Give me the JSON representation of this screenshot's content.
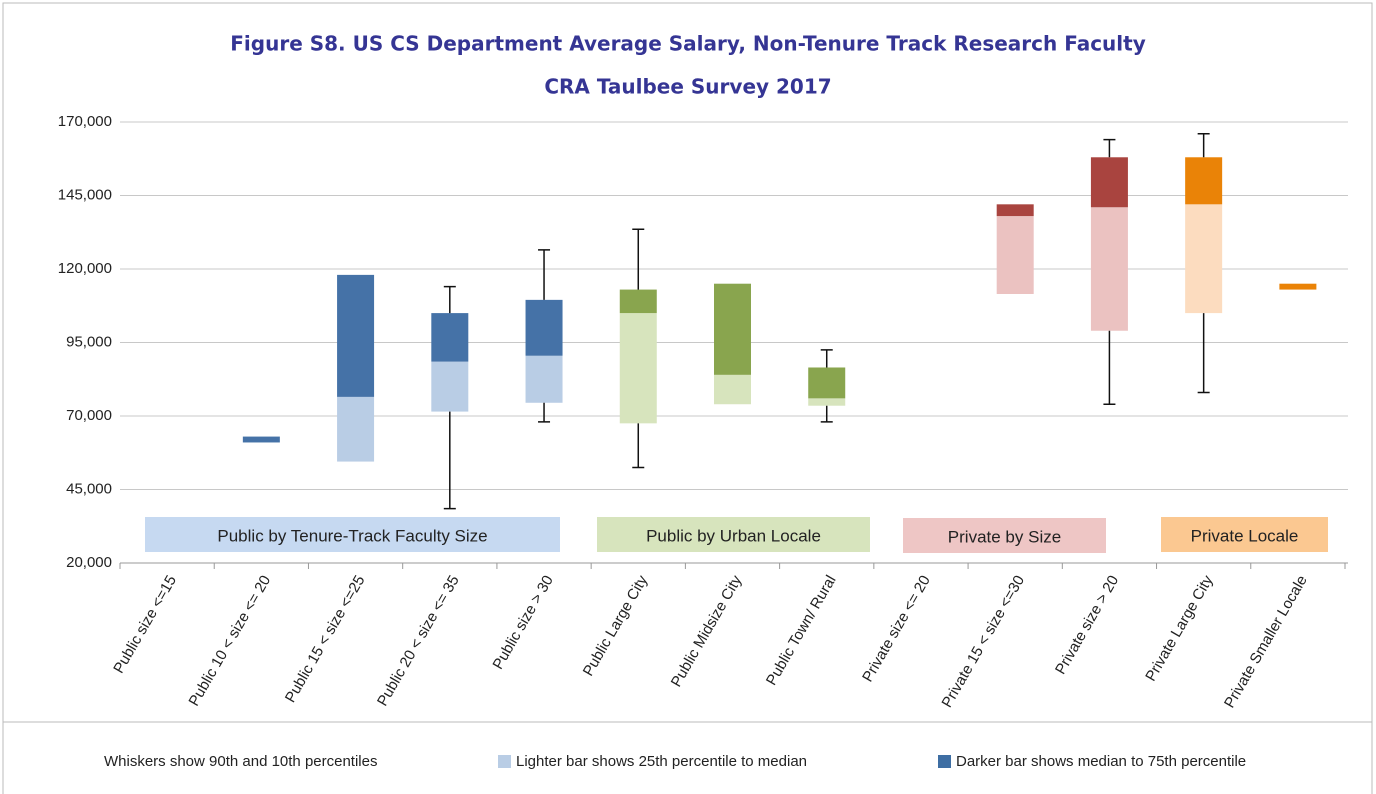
{
  "chart_data": {
    "type": "box",
    "title": "Figure S8. US CS Department Average Salary, Non-Tenure Track Research Faculty",
    "subtitle": "CRA Taulbee Survey 2017",
    "categories": [
      "Public size <=15",
      "Public 10 < size <= 20",
      "Public 15 < size <=25",
      "Public 20 < size <= 35",
      "Public size > 30",
      "Public Large City",
      "Public Midsize City",
      "Public Town/ Rural",
      "Private size <= 20",
      "Private 15 < size <=30",
      "Private size > 20",
      "Private Large City",
      "Private Smaller Locale"
    ],
    "p10": [
      null,
      null,
      null,
      38500,
      68000,
      52500,
      null,
      68000,
      null,
      null,
      74000,
      78000,
      null
    ],
    "p25": [
      null,
      61000,
      54500,
      71500,
      74500,
      67500,
      74000,
      73500,
      null,
      111500,
      99000,
      105000,
      113000
    ],
    "median": [
      null,
      61000,
      76500,
      88500,
      90500,
      105000,
      84000,
      76000,
      null,
      138000,
      141000,
      142000,
      113000
    ],
    "p75": [
      null,
      63000,
      118000,
      105000,
      109500,
      113000,
      115000,
      86500,
      null,
      142000,
      158000,
      158000,
      115000
    ],
    "p90": [
      null,
      null,
      null,
      114000,
      126500,
      133500,
      null,
      92500,
      null,
      null,
      164000,
      166000,
      null
    ],
    "groups": [
      {
        "label": "Public by Tenure-Track Faculty Size",
        "dark_color": "#4572a7",
        "light_color": "#b9cde5",
        "label_color": "#c6d9f1"
      },
      {
        "label": "Public by Urban Locale",
        "dark_color": "#89a54e",
        "light_color": "#d7e4bd",
        "label_color": "#d7e4bd"
      },
      {
        "label": "Private by Size",
        "dark_color": "#a9443f",
        "light_color": "#ebc2c1",
        "label_color": "#eec6c5"
      },
      {
        "label": "Private Locale",
        "dark_color": "#ea8307",
        "light_color": "#fcdcbf",
        "label_color": "#fbc891"
      }
    ],
    "ylim": [
      20000,
      170000
    ],
    "yticks": [
      {
        "value": 20000,
        "label": "20,000"
      },
      {
        "value": 45000,
        "label": "45,000"
      },
      {
        "value": 70000,
        "label": "70,000"
      },
      {
        "value": 95000,
        "label": "95,000"
      },
      {
        "value": 120000,
        "label": "120,000"
      },
      {
        "value": 145000,
        "label": "145,000"
      },
      {
        "value": 170000,
        "label": "170,000"
      }
    ],
    "grid": true,
    "notes": {
      "whiskers": "Whiskers show 90th and 10th percentiles",
      "light": "Lighter bar shows 25th percentile to median",
      "dark": "Darker bar shows median to 75th percentile"
    },
    "note_light_color": "#b9cde5",
    "note_dark_color": "#3e6ea3"
  }
}
